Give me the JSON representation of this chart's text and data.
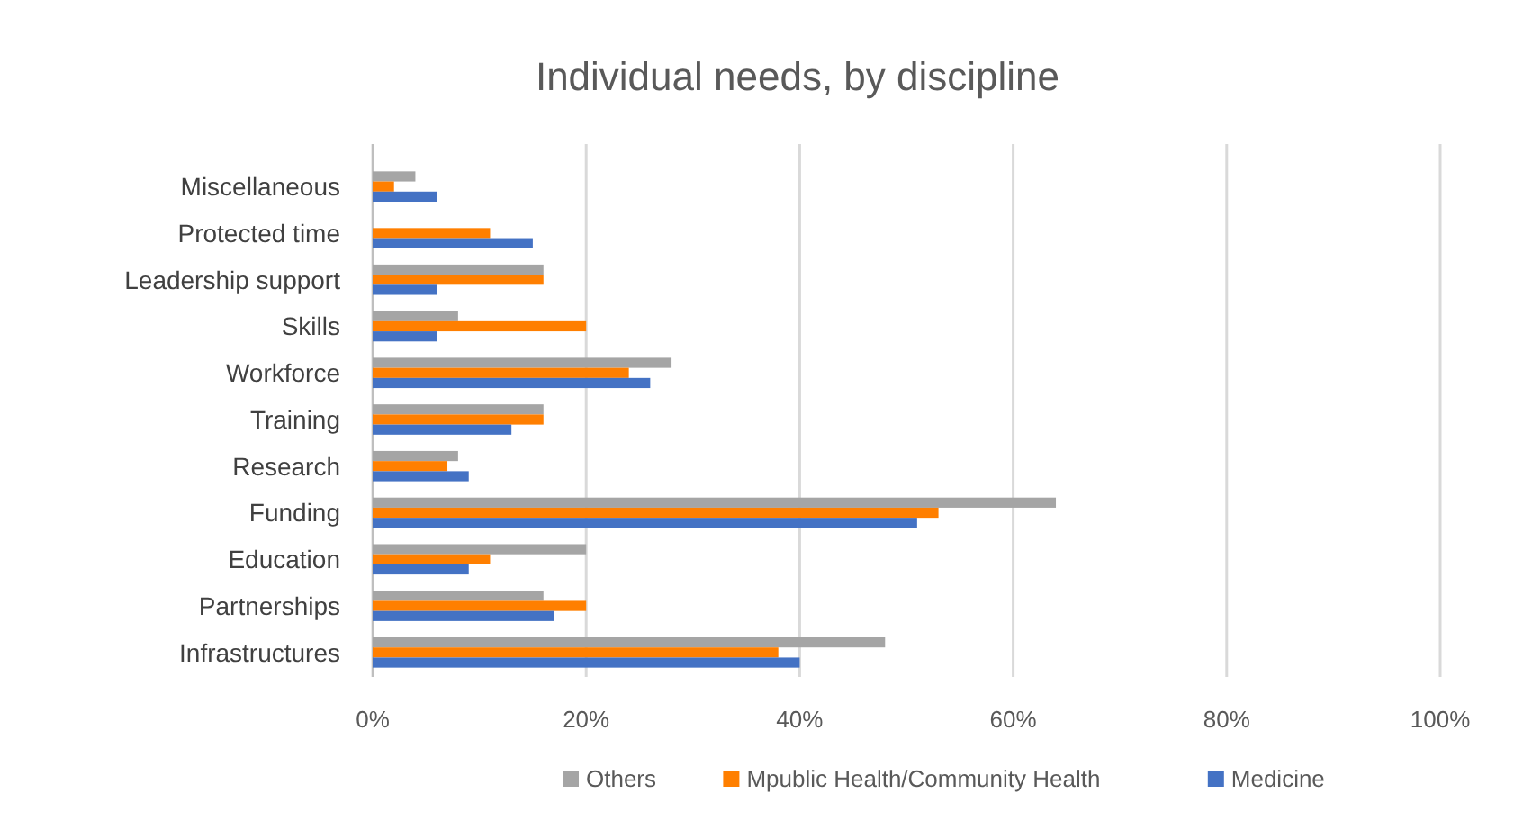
{
  "chart_data": {
    "type": "bar",
    "orientation": "horizontal",
    "title": "Individual needs, by discipline",
    "categories": [
      "Miscellaneous",
      "Protected time",
      "Leadership support",
      "Skills",
      "Workforce",
      "Training",
      "Research",
      "Funding",
      "Education",
      "Partnerships",
      "Infrastructures"
    ],
    "series": [
      {
        "name": "Others",
        "color": "#a5a5a5",
        "values": [
          4,
          null,
          16,
          8,
          28,
          16,
          8,
          64,
          20,
          16,
          48
        ]
      },
      {
        "name": "Mpublic Health/Community Health",
        "color": "#ff7f00",
        "values": [
          2,
          11,
          16,
          20,
          24,
          16,
          7,
          53,
          11,
          20,
          38
        ]
      },
      {
        "name": "Medicine",
        "color": "#4472c4",
        "values": [
          6,
          15,
          6,
          6,
          26,
          13,
          9,
          51,
          9,
          17,
          40
        ]
      }
    ],
    "xlim": [
      0,
      100
    ],
    "xticks": [
      {
        "value": 0,
        "label": "0%"
      },
      {
        "value": 20,
        "label": "20%"
      },
      {
        "value": 40,
        "label": "40%"
      },
      {
        "value": 60,
        "label": "60%"
      },
      {
        "value": 80,
        "label": "80%"
      },
      {
        "value": 100,
        "label": "100%"
      }
    ],
    "grid": "x",
    "legend": "bottom"
  }
}
